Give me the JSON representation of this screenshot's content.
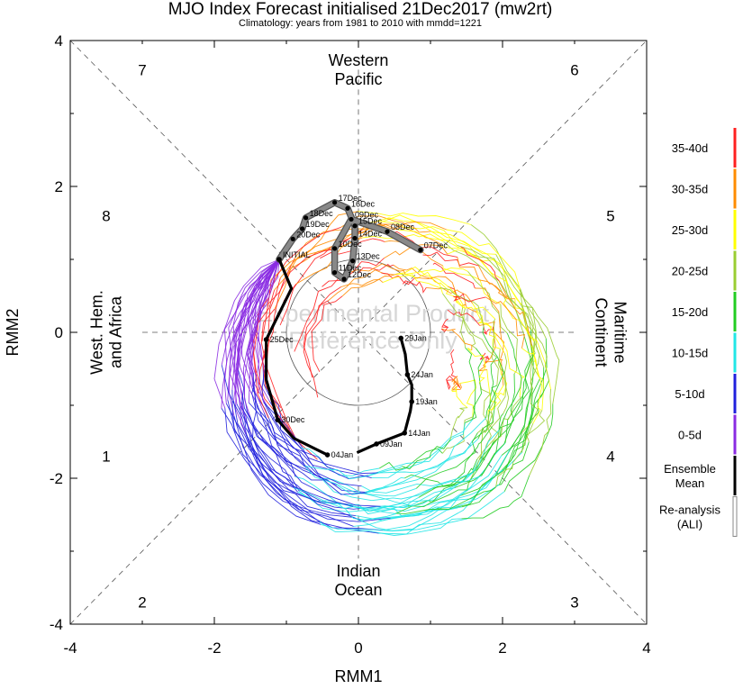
{
  "chart_data": {
    "type": "line",
    "title": "MJO Index Forecast initialised 21Dec2017 (mw2rt)",
    "subtitle": "Climatology: years from 1981 to 2010 with mmdd=1221",
    "xlabel": "RMM1",
    "ylabel": "RMM2",
    "xlim": [
      -4,
      4
    ],
    "ylim": [
      -4,
      4
    ],
    "xticks": [
      "-4",
      "-2",
      "0",
      "2",
      "4"
    ],
    "yticks": [
      "-4",
      "-2",
      "0",
      "2",
      "4"
    ],
    "watermark": [
      "Experimental Product",
      "Reference Only"
    ],
    "phase_numbers": [
      {
        "label": "7",
        "x": -3.0,
        "y": 3.6
      },
      {
        "label": "6",
        "x": 3.0,
        "y": 3.6
      },
      {
        "label": "8",
        "x": -3.5,
        "y": 1.6
      },
      {
        "label": "5",
        "x": 3.5,
        "y": 1.6
      },
      {
        "label": "1",
        "x": -3.5,
        "y": -1.7
      },
      {
        "label": "4",
        "x": 3.5,
        "y": -1.7
      },
      {
        "label": "2",
        "x": -3.0,
        "y": -3.7
      },
      {
        "label": "3",
        "x": 3.0,
        "y": -3.7
      }
    ],
    "regions": [
      {
        "lines": [
          "Western",
          "Pacific"
        ],
        "x": 0,
        "y": 3.6,
        "rotate": 0
      },
      {
        "lines": [
          "Indian",
          "Ocean"
        ],
        "x": 0,
        "y": -3.4,
        "rotate": 0
      },
      {
        "lines": [
          "West. Hem.",
          "and Africa"
        ],
        "x": -3.5,
        "y": 0,
        "rotate": -90
      },
      {
        "lines": [
          "Maritime",
          "Continent"
        ],
        "x": 3.5,
        "y": 0,
        "rotate": 90
      }
    ],
    "legend": {
      "placement": "right",
      "items": [
        {
          "label": "35-40d",
          "color": "#ff2020"
        },
        {
          "label": "30-35d",
          "color": "#ff8c00"
        },
        {
          "label": "25-30d",
          "color": "#ffff00"
        },
        {
          "label": "20-25d",
          "color": "#9acd32"
        },
        {
          "label": "15-20d",
          "color": "#22cc22"
        },
        {
          "label": "10-15d",
          "color": "#22e6e6"
        },
        {
          "label": "5-10d",
          "color": "#2020dd"
        },
        {
          "label": "0-5d",
          "color": "#8a2be2"
        },
        {
          "label": "Ensemble Mean",
          "lines": [
            "Ensemble",
            "Mean"
          ],
          "color": "#000000"
        },
        {
          "label": "Re-analysis (ALI)",
          "lines": [
            "Re-analysis",
            "(ALI)"
          ],
          "color": "#888888"
        }
      ]
    },
    "reanalysis": {
      "name": "Re-analysis (ALI)",
      "color": "#888888",
      "points": [
        {
          "label": "07Dec",
          "x": 0.86,
          "y": 1.13
        },
        {
          "label": "08Dec",
          "x": 0.4,
          "y": 1.38
        },
        {
          "label": "09Dec",
          "x": -0.1,
          "y": 1.55
        },
        {
          "label": "10Dec",
          "x": -0.33,
          "y": 1.15
        },
        {
          "label": "11Dec",
          "x": -0.33,
          "y": 0.82
        },
        {
          "label": "12Dec",
          "x": -0.2,
          "y": 0.73
        },
        {
          "label": "13Dec",
          "x": -0.08,
          "y": 0.98
        },
        {
          "label": "14Dec",
          "x": -0.05,
          "y": 1.29
        },
        {
          "label": "15Dec",
          "x": -0.05,
          "y": 1.46
        },
        {
          "label": "16Dec",
          "x": -0.15,
          "y": 1.7
        },
        {
          "label": "17Dec",
          "x": -0.33,
          "y": 1.78
        },
        {
          "label": "18Dec",
          "x": -0.73,
          "y": 1.57
        },
        {
          "label": "19Dec",
          "x": -0.78,
          "y": 1.42
        },
        {
          "label": "20Dec",
          "x": -0.91,
          "y": 1.28
        },
        {
          "label": "INITIAL",
          "x": -1.1,
          "y": 1.0
        }
      ]
    },
    "ensemble_means": [
      {
        "name": "Ensemble Mean",
        "color": "#000000",
        "points": [
          {
            "label": "INITIAL",
            "x": -1.1,
            "y": 1.0
          },
          {
            "label": "",
            "x": -0.93,
            "y": 0.6
          },
          {
            "label": "",
            "x": -1.08,
            "y": 0.3
          },
          {
            "label": "25Dec",
            "x": -1.28,
            "y": -0.1
          },
          {
            "label": "",
            "x": -1.28,
            "y": -0.65
          },
          {
            "label": "30Dec",
            "x": -1.12,
            "y": -1.2
          },
          {
            "label": "",
            "x": -0.9,
            "y": -1.45
          },
          {
            "label": "04Jan",
            "x": -0.43,
            "y": -1.68
          }
        ]
      },
      {
        "name": "Ensemble Mean",
        "color": "#000000",
        "points": [
          {
            "label": "",
            "x": -0.02,
            "y": -1.65
          },
          {
            "label": "09Jan",
            "x": 0.25,
            "y": -1.53
          },
          {
            "label": "14Jan",
            "x": 0.64,
            "y": -1.38
          },
          {
            "label": "",
            "x": 0.72,
            "y": -1.08
          },
          {
            "label": "19Jan",
            "x": 0.74,
            "y": -0.95
          },
          {
            "label": "",
            "x": 0.74,
            "y": -0.72
          },
          {
            "label": "24Jan",
            "x": 0.68,
            "y": -0.58
          },
          {
            "label": "",
            "x": 0.65,
            "y": -0.3
          },
          {
            "label": "29Jan",
            "x": 0.59,
            "y": -0.08
          }
        ]
      }
    ]
  }
}
